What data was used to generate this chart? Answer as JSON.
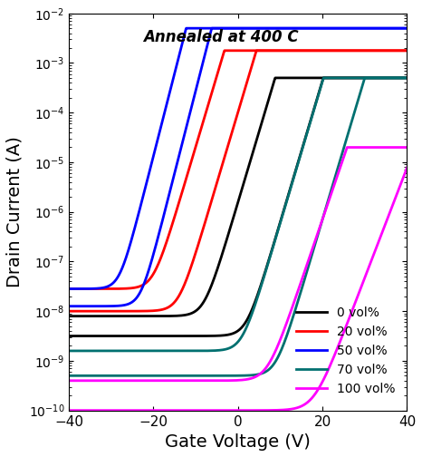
{
  "title": "Annealed at 400 C",
  "xlabel": "Gate Voltage (V)",
  "ylabel": "Drain Current (A)",
  "xlim": [
    -40,
    40
  ],
  "ylim_log": [
    -10,
    -2
  ],
  "lw": 2.0,
  "curves": [
    {
      "label": "0 vol%",
      "color": "#000000",
      "vt_fwd": -8,
      "vt_bwd": 2,
      "log_i_off_fwd": -8.1,
      "log_i_off_bwd": -8.5,
      "log_i_on": -3.3,
      "ss_fwd": 3.5,
      "ss_bwd": 3.5
    },
    {
      "label": "20 vol%",
      "color": "#ff0000",
      "vt_fwd": -20,
      "vt_bwd": -14,
      "log_i_off_fwd": -7.55,
      "log_i_off_bwd": -8.0,
      "log_i_on": -2.75,
      "ss_fwd": 3.5,
      "ss_bwd": 3.5
    },
    {
      "label": "50 vol%",
      "color": "#0000ff",
      "vt_fwd": -28,
      "vt_bwd": -23,
      "log_i_off_fwd": -7.55,
      "log_i_off_bwd": -7.9,
      "log_i_on": -2.3,
      "ss_fwd": 3.0,
      "ss_bwd": 3.0
    },
    {
      "label": "70 vol%",
      "color": "#007070",
      "vt_fwd": 1,
      "vt_bwd": 9,
      "log_i_off_fwd": -8.8,
      "log_i_off_bwd": -9.3,
      "log_i_on": -3.3,
      "ss_fwd": 3.5,
      "ss_bwd": 3.5
    },
    {
      "label": "100 vol%",
      "color": "#ff00ff",
      "vt_fwd": 7,
      "vt_bwd": 18,
      "log_i_off_fwd": -9.4,
      "log_i_off_bwd": -10.0,
      "log_i_on": -4.7,
      "ss_fwd": 4.0,
      "ss_bwd": 4.5
    }
  ]
}
